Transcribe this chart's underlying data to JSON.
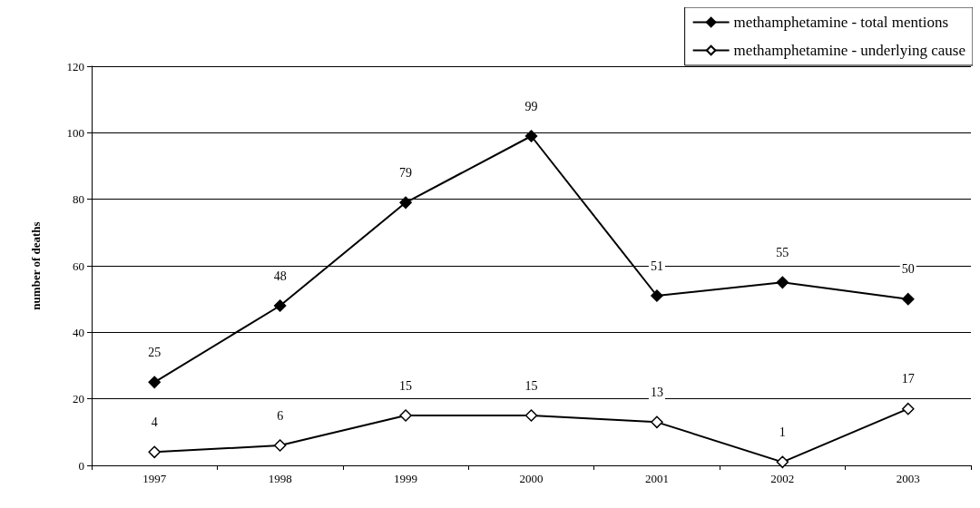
{
  "chart_data": {
    "type": "line",
    "ylabel": "number of deaths",
    "categories": [
      "1997",
      "1998",
      "1999",
      "2000",
      "2001",
      "2002",
      "2003"
    ],
    "series": [
      {
        "name": "methamphetamine - total mentions",
        "color": "#000000",
        "values": [
          25,
          48,
          79,
          99,
          51,
          55,
          50
        ]
      },
      {
        "name": "methamphetamine - underlying cause",
        "color": "#000000",
        "values": [
          4,
          6,
          15,
          15,
          13,
          1,
          17
        ]
      }
    ],
    "ylim": [
      0,
      120
    ],
    "yticks": [
      0,
      20,
      40,
      60,
      80,
      100,
      120
    ],
    "grid": "y",
    "legend": "top right",
    "marker": "diamond",
    "line_style": "solid",
    "data_labels": true
  }
}
